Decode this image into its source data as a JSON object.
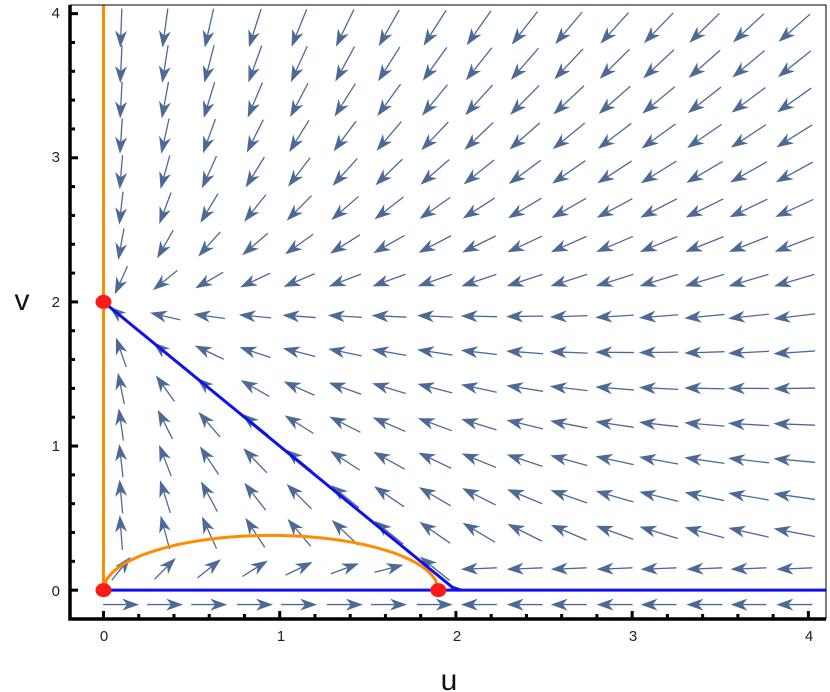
{
  "chart_data": {
    "type": "vector-field",
    "xlabel": "u",
    "ylabel": "v",
    "xlim": [
      -0.19,
      4.1
    ],
    "ylim": [
      -0.2,
      4.06
    ],
    "x_ticks": [
      "0",
      "1",
      "2",
      "3",
      "4"
    ],
    "y_ticks": [
      "0",
      "1",
      "2",
      "3",
      "4"
    ],
    "grid": false,
    "vector_field": {
      "color": "#4d6a96",
      "u_samples": [
        0.1,
        0.35,
        0.6,
        0.86,
        1.11,
        1.37,
        1.62,
        1.88,
        2.13,
        2.39,
        2.64,
        2.9,
        3.15,
        3.41,
        3.66,
        3.92
      ],
      "v_samples": [
        -0.1,
        0.15,
        0.4,
        0.65,
        0.9,
        1.15,
        1.4,
        1.65,
        1.9,
        2.15,
        2.4,
        2.65,
        2.9,
        3.15,
        3.4,
        3.65,
        3.9
      ]
    },
    "blue_nullclines": {
      "color": "#1010ee",
      "segments": [
        {
          "points": [
            [
              0,
              0
            ],
            [
              4.1,
              0
            ]
          ]
        },
        {
          "points": [
            [
              0,
              2
            ],
            [
              1.98,
              0.02
            ],
            [
              2.03,
              0
            ]
          ]
        }
      ]
    },
    "orange_nullclines": {
      "color": "#ff8c00",
      "vertical_line": {
        "u": 0,
        "v_range": [
          0,
          4.06
        ]
      },
      "arc": {
        "u_range": [
          0,
          1.9
        ],
        "peak_v": 0.38
      }
    },
    "equilibria": {
      "color": "#ff1a1a",
      "points": [
        [
          0,
          0
        ],
        [
          0,
          2
        ],
        [
          1.9,
          0
        ]
      ]
    }
  }
}
